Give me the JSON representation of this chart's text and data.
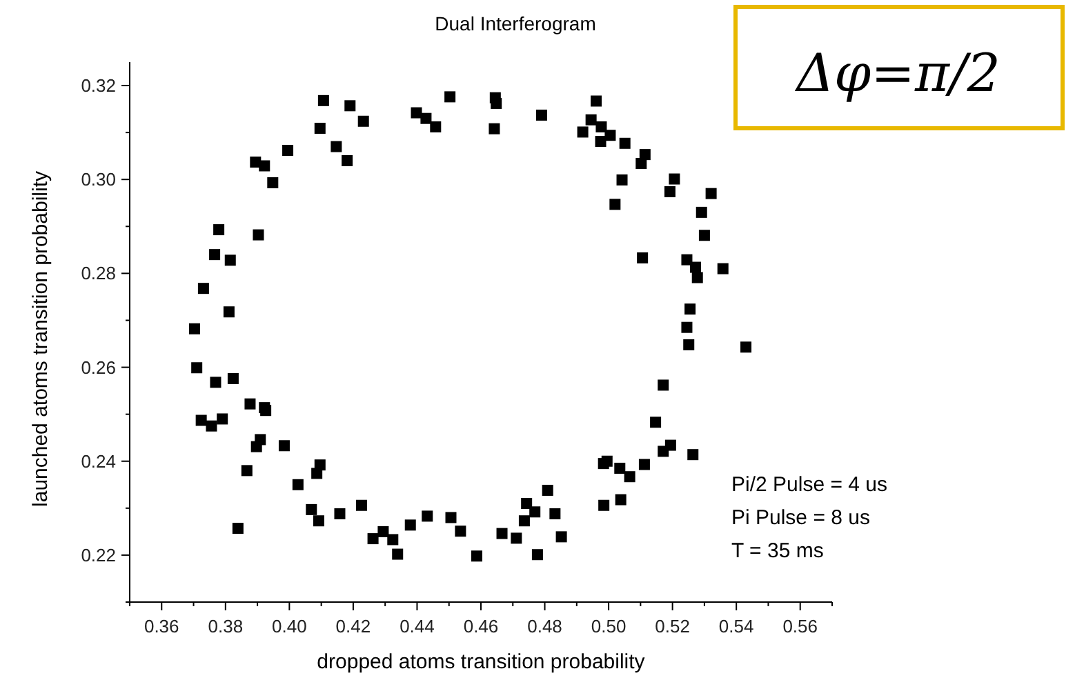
{
  "chart_data": {
    "type": "scatter",
    "title": "Dual Interferogram",
    "xlabel": "dropped atoms transition probability",
    "ylabel": "launched atoms transition probability",
    "annotations": [
      "Pi/2 Pulse = 4 us",
      "Pi Pulse = 8 us",
      "T = 35 ms",
      "Δφ=π/2"
    ],
    "marker": "square",
    "xlim": [
      0.35,
      0.57
    ],
    "ylim": [
      0.21,
      0.325
    ],
    "xticks": [
      {
        "value": 0.35,
        "label": null
      },
      {
        "value": 0.36,
        "label": "0.36"
      },
      {
        "value": 0.37,
        "label": null
      },
      {
        "value": 0.38,
        "label": "0.38"
      },
      {
        "value": 0.39,
        "label": null
      },
      {
        "value": 0.4,
        "label": "0.40"
      },
      {
        "value": 0.41,
        "label": null
      },
      {
        "value": 0.42,
        "label": "0.42"
      },
      {
        "value": 0.43,
        "label": null
      },
      {
        "value": 0.44,
        "label": "0.44"
      },
      {
        "value": 0.45,
        "label": null
      },
      {
        "value": 0.46,
        "label": "0.46"
      },
      {
        "value": 0.47,
        "label": null
      },
      {
        "value": 0.48,
        "label": "0.48"
      },
      {
        "value": 0.49,
        "label": null
      },
      {
        "value": 0.5,
        "label": "0.50"
      },
      {
        "value": 0.51,
        "label": null
      },
      {
        "value": 0.52,
        "label": "0.52"
      },
      {
        "value": 0.53,
        "label": null
      },
      {
        "value": 0.54,
        "label": "0.54"
      },
      {
        "value": 0.55,
        "label": null
      },
      {
        "value": 0.56,
        "label": "0.56"
      },
      {
        "value": 0.57,
        "label": null
      }
    ],
    "yticks": [
      {
        "value": 0.21,
        "label": null
      },
      {
        "value": 0.22,
        "label": "0.22"
      },
      {
        "value": 0.23,
        "label": null
      },
      {
        "value": 0.24,
        "label": "0.24"
      },
      {
        "value": 0.25,
        "label": null
      },
      {
        "value": 0.26,
        "label": "0.26"
      },
      {
        "value": 0.27,
        "label": null
      },
      {
        "value": 0.28,
        "label": "0.28"
      },
      {
        "value": 0.29,
        "label": null
      },
      {
        "value": 0.3,
        "label": "0.30"
      },
      {
        "value": 0.31,
        "label": null
      },
      {
        "value": 0.32,
        "label": "0.32"
      }
    ],
    "series": [
      {
        "color": "#000000",
        "x": [
          0.4107,
          0.419,
          0.4232,
          0.4096,
          0.4147,
          0.4181,
          0.3995,
          0.3894,
          0.3922,
          0.3948,
          0.3779,
          0.3903,
          0.3766,
          0.3815,
          0.3731,
          0.3811,
          0.3703,
          0.4398,
          0.4428,
          0.4458,
          0.4503,
          0.371,
          0.3769,
          0.3824,
          0.3724,
          0.3756,
          0.379,
          0.3877,
          0.3922,
          0.3926,
          0.3909,
          0.3897,
          0.3984,
          0.3867,
          0.4096,
          0.4086,
          0.4027,
          0.4069,
          0.4092,
          0.4158,
          0.4226,
          0.3839,
          0.4262,
          0.4294,
          0.4324,
          0.4339,
          0.4379,
          0.4432,
          0.4506,
          0.4645,
          0.4648,
          0.4642,
          0.479,
          0.4961,
          0.4945,
          0.4977,
          0.4919,
          0.5005,
          0.4975,
          0.5051,
          0.5114,
          0.5102,
          0.5042,
          0.5206,
          0.5192,
          0.502,
          0.5321,
          0.5291,
          0.53,
          0.5106,
          0.5245,
          0.5272,
          0.5278,
          0.5358,
          0.5255,
          0.5245,
          0.5251,
          0.543,
          0.5171,
          0.5147,
          0.5194,
          0.5171,
          0.5264,
          0.5112,
          0.4984,
          0.4995,
          0.5035,
          0.5066,
          0.4985,
          0.5038,
          0.4536,
          0.4587,
          0.4666,
          0.4711,
          0.4736,
          0.4743,
          0.4769,
          0.4809,
          0.4832,
          0.4777,
          0.4852
        ],
        "values": [
          0.3168,
          0.3157,
          0.3124,
          0.3109,
          0.307,
          0.304,
          0.3062,
          0.3037,
          0.3029,
          0.2993,
          0.2893,
          0.2882,
          0.284,
          0.2828,
          0.2768,
          0.2718,
          0.2682,
          0.3142,
          0.313,
          0.3112,
          0.3176,
          0.2599,
          0.2568,
          0.2576,
          0.2487,
          0.2475,
          0.249,
          0.2522,
          0.2514,
          0.2508,
          0.2446,
          0.2431,
          0.2433,
          0.238,
          0.2392,
          0.2374,
          0.235,
          0.2297,
          0.2273,
          0.2288,
          0.2306,
          0.2257,
          0.2235,
          0.225,
          0.2233,
          0.2202,
          0.2264,
          0.2283,
          0.228,
          0.3174,
          0.3162,
          0.3108,
          0.3137,
          0.3167,
          0.3127,
          0.3112,
          0.3101,
          0.3094,
          0.3081,
          0.3077,
          0.3053,
          0.3034,
          0.2999,
          0.3001,
          0.2974,
          0.2947,
          0.297,
          0.293,
          0.2881,
          0.2833,
          0.2829,
          0.2813,
          0.2791,
          0.281,
          0.2724,
          0.2685,
          0.2648,
          0.2643,
          0.2562,
          0.2483,
          0.2434,
          0.2421,
          0.2414,
          0.2393,
          0.2395,
          0.24,
          0.2385,
          0.2367,
          0.2306,
          0.2318,
          0.2251,
          0.2198,
          0.2246,
          0.2236,
          0.2273,
          0.231,
          0.2292,
          0.2338,
          0.2288,
          0.2201,
          0.2239
        ]
      }
    ]
  }
}
